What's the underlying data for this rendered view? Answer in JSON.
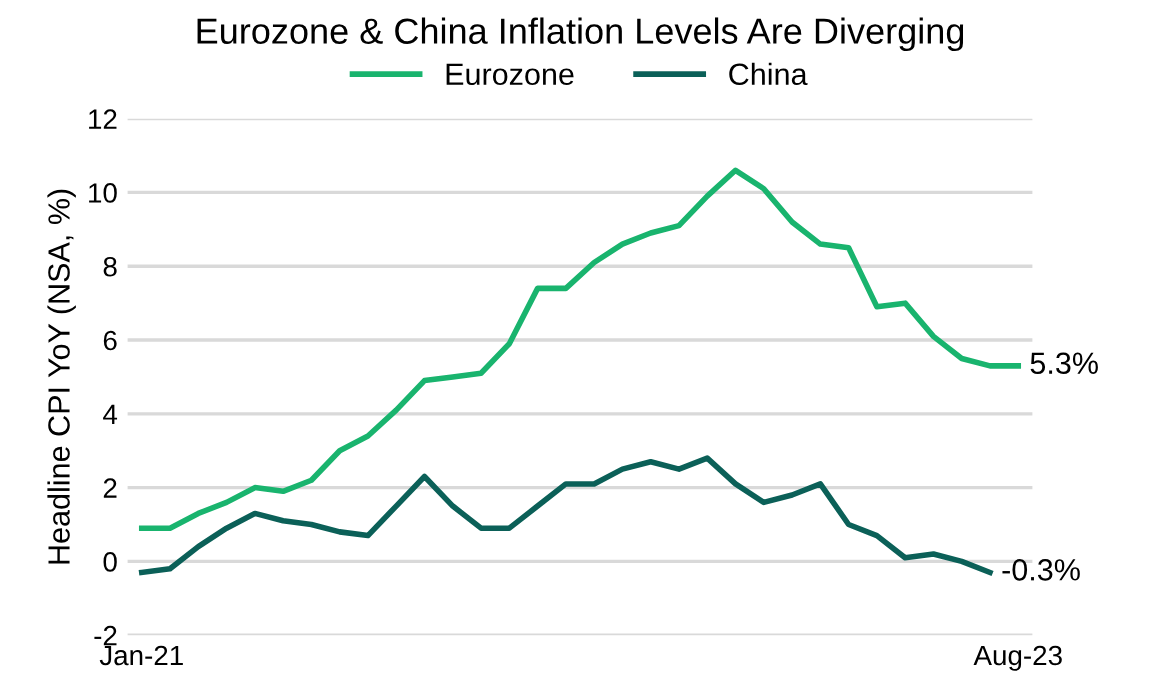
{
  "chart_data": {
    "type": "line",
    "title": "Eurozone & China Inflation Levels Are Diverging",
    "ylabel": "Headline CPI YoY (NSA, %)",
    "categories": [
      "Jan-21",
      null,
      null,
      null,
      null,
      null,
      null,
      null,
      null,
      null,
      null,
      null,
      null,
      null,
      null,
      null,
      null,
      null,
      null,
      null,
      null,
      null,
      null,
      null,
      null,
      null,
      null,
      null,
      null,
      null,
      null,
      "Aug-23"
    ],
    "series": [
      {
        "name": "Eurozone",
        "color": "#19b46e",
        "values": [
          0.9,
          0.9,
          1.3,
          1.6,
          2.0,
          1.9,
          2.2,
          3.0,
          3.4,
          4.1,
          4.9,
          5.0,
          5.1,
          5.9,
          7.4,
          7.4,
          8.1,
          8.6,
          8.9,
          9.1,
          9.9,
          10.6,
          10.1,
          9.2,
          8.6,
          8.5,
          6.9,
          7.0,
          6.1,
          5.5,
          5.3,
          5.3
        ],
        "value_labels": [
          null,
          null,
          null,
          null,
          null,
          null,
          null,
          null,
          null,
          null,
          null,
          null,
          null,
          null,
          null,
          null,
          null,
          null,
          null,
          null,
          null,
          null,
          null,
          null,
          null,
          null,
          null,
          null,
          null,
          null,
          null,
          "5.3%"
        ]
      },
      {
        "name": "China",
        "color": "#0b6058",
        "values": [
          -0.3,
          -0.2,
          0.4,
          0.9,
          1.3,
          1.1,
          1.0,
          0.8,
          0.7,
          1.5,
          2.3,
          1.5,
          0.9,
          0.9,
          1.5,
          2.1,
          2.1,
          2.5,
          2.7,
          2.5,
          2.8,
          2.1,
          1.6,
          1.8,
          2.1,
          1.0,
          0.7,
          0.1,
          0.2,
          0.0,
          -0.3,
          null
        ],
        "value_labels": [
          null,
          null,
          null,
          null,
          null,
          null,
          null,
          null,
          null,
          null,
          null,
          null,
          null,
          null,
          null,
          null,
          null,
          null,
          null,
          null,
          null,
          null,
          null,
          null,
          null,
          null,
          null,
          null,
          null,
          null,
          "-0.3%",
          null
        ]
      }
    ],
    "ylim": [
      -2,
      12
    ],
    "yticks": [
      -2,
      0,
      2,
      4,
      6,
      8,
      10,
      12
    ],
    "grid": "y",
    "legend": "top",
    "marker": "none",
    "line_style": "solid"
  }
}
